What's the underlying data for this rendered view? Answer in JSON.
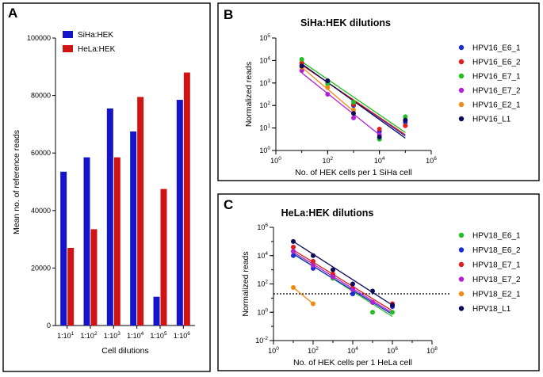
{
  "chart_data": [
    {
      "panel": "A",
      "type": "bar",
      "title": "",
      "xlabel": "Cell dilutions",
      "ylabel": "Mean no. of reference reads",
      "ylim": [
        0,
        100000
      ],
      "yticks": [
        "0",
        "20000",
        "40000",
        "60000",
        "80000",
        "100000"
      ],
      "categories": [
        {
          "base": "1:10",
          "exp": "1"
        },
        {
          "base": "1:10",
          "exp": "2"
        },
        {
          "base": "1:10",
          "exp": "3"
        },
        {
          "base": "1:10",
          "exp": "4"
        },
        {
          "base": "1:10",
          "exp": "5"
        },
        {
          "base": "1:10",
          "exp": "6"
        }
      ],
      "legend_position": "top-left",
      "series": [
        {
          "name": "SiHa:HEK",
          "color": "#1414c8",
          "values": [
            53500,
            58500,
            75500,
            67500,
            10000,
            78500
          ]
        },
        {
          "name": "HeLa:HEK",
          "color": "#d01414",
          "values": [
            27000,
            33500,
            58500,
            79500,
            47500,
            88000
          ]
        }
      ]
    },
    {
      "panel": "B",
      "type": "scatter",
      "title": "SiHa:HEK dilutions",
      "xlabel": "No. of HEK cells per 1 SiHa cell",
      "ylabel": "Normalized reads",
      "xscale": "log",
      "yscale": "log",
      "xlim_exp": [
        0,
        6
      ],
      "ylim_exp": [
        0,
        5
      ],
      "xtick_exps": [
        "0",
        "2",
        "4",
        "6"
      ],
      "ytick_exps": [
        "0",
        "1",
        "2",
        "3",
        "4",
        "5"
      ],
      "legend_position": "right",
      "series": [
        {
          "name": "HPV16_E6_1",
          "color": "#1c2bd6",
          "x_exp": [
            1,
            2,
            3,
            4,
            5
          ],
          "y_exp": [
            3.85,
            3.0,
            2.0,
            0.85,
            1.25
          ],
          "fit_exp": [
            [
              1,
              3.82
            ],
            [
              5,
              0.65
            ]
          ]
        },
        {
          "name": "HPV16_E6_2",
          "color": "#e21b1b",
          "x_exp": [
            1,
            2,
            3,
            4,
            5
          ],
          "y_exp": [
            3.9,
            3.1,
            2.05,
            0.95,
            1.1
          ],
          "fit_exp": [
            [
              1,
              3.8
            ],
            [
              5,
              0.7
            ]
          ]
        },
        {
          "name": "HPV16_E7_1",
          "color": "#21bd21",
          "x_exp": [
            1,
            2,
            3,
            4,
            5
          ],
          "y_exp": [
            4.05,
            2.95,
            2.15,
            0.5,
            1.5
          ],
          "fit_exp": [
            [
              1,
              3.95
            ],
            [
              5,
              0.8
            ]
          ]
        },
        {
          "name": "HPV16_E7_2",
          "color": "#b31fd6",
          "x_exp": [
            1,
            2,
            3,
            4
          ],
          "y_exp": [
            3.55,
            2.5,
            1.45,
            0.7
          ],
          "fit_exp": [
            [
              1,
              3.45
            ],
            [
              4,
              0.7
            ]
          ]
        },
        {
          "name": "HPV16_E2_1",
          "color": "#f08a12",
          "x_exp": [
            1,
            2,
            3
          ],
          "y_exp": [
            3.7,
            2.8,
            1.8
          ],
          "fit_exp": [
            [
              1,
              3.7
            ],
            [
              3,
              1.75
            ]
          ]
        },
        {
          "name": "HPV16_L1",
          "color": "#0c0c5c",
          "x_exp": [
            1,
            2,
            3,
            4,
            5
          ],
          "y_exp": [
            3.75,
            3.1,
            1.65,
            0.6,
            1.35
          ],
          "fit_exp": [
            [
              1,
              3.85
            ],
            [
              5,
              0.55
            ]
          ]
        }
      ]
    },
    {
      "panel": "C",
      "type": "scatter",
      "title": "HeLa:HEK dilutions",
      "xlabel": "No. of HEK cells per 1 HeLa cell",
      "ylabel": "Normalized reads",
      "xscale": "log",
      "yscale": "log",
      "xlim_exp": [
        0,
        8
      ],
      "ylim_exp": [
        -2,
        6
      ],
      "xtick_exps": [
        "0",
        "2",
        "4",
        "6",
        "8"
      ],
      "ytick_exps": [
        "-2",
        "0",
        "2",
        "4",
        "6"
      ],
      "threshold_exp": 1.3,
      "legend_position": "right",
      "series": [
        {
          "name": "HPV18_E6_1",
          "color": "#21bd21",
          "x_exp": [
            1,
            2,
            3,
            4,
            5,
            6
          ],
          "y_exp": [
            4.3,
            3.3,
            2.4,
            1.3,
            0.0,
            0.0
          ],
          "fit_exp": [
            [
              1,
              4.15
            ],
            [
              6,
              -0.3
            ]
          ]
        },
        {
          "name": "HPV18_E6_2",
          "color": "#1c2bd6",
          "x_exp": [
            1,
            2,
            3,
            4,
            5,
            6
          ],
          "y_exp": [
            4.0,
            3.1,
            2.5,
            1.3,
            0.7,
            0.4
          ],
          "fit_exp": [
            [
              1,
              4.1
            ],
            [
              6,
              -0.15
            ]
          ]
        },
        {
          "name": "HPV18_E7_1",
          "color": "#e21b1b",
          "x_exp": [
            1,
            2,
            3,
            4,
            5,
            6
          ],
          "y_exp": [
            4.6,
            3.6,
            2.7,
            1.7,
            0.7,
            0.6
          ],
          "fit_exp": [
            [
              1,
              4.4
            ],
            [
              6,
              0.1
            ]
          ]
        },
        {
          "name": "HPV18_E7_2",
          "color": "#b31fd6",
          "x_exp": [
            1,
            2,
            3,
            4,
            5,
            6
          ],
          "y_exp": [
            4.3,
            3.3,
            2.5,
            1.6,
            0.7,
            0.5
          ],
          "fit_exp": [
            [
              1,
              4.25
            ],
            [
              6,
              -0.05
            ]
          ]
        },
        {
          "name": "HPV18_E2_1",
          "color": "#f08a12",
          "x_exp": [
            1,
            2
          ],
          "y_exp": [
            1.75,
            0.6
          ],
          "fit_exp": [
            [
              1,
              1.75
            ],
            [
              2,
              0.6
            ]
          ]
        },
        {
          "name": "HPV18_L1",
          "color": "#0c0c5c",
          "x_exp": [
            1,
            2,
            3,
            4,
            5,
            6
          ],
          "y_exp": [
            5.0,
            4.0,
            3.0,
            2.0,
            1.5,
            0.5
          ],
          "fit_exp": [
            [
              1,
              5.0
            ],
            [
              6,
              0.5
            ]
          ]
        }
      ]
    }
  ]
}
